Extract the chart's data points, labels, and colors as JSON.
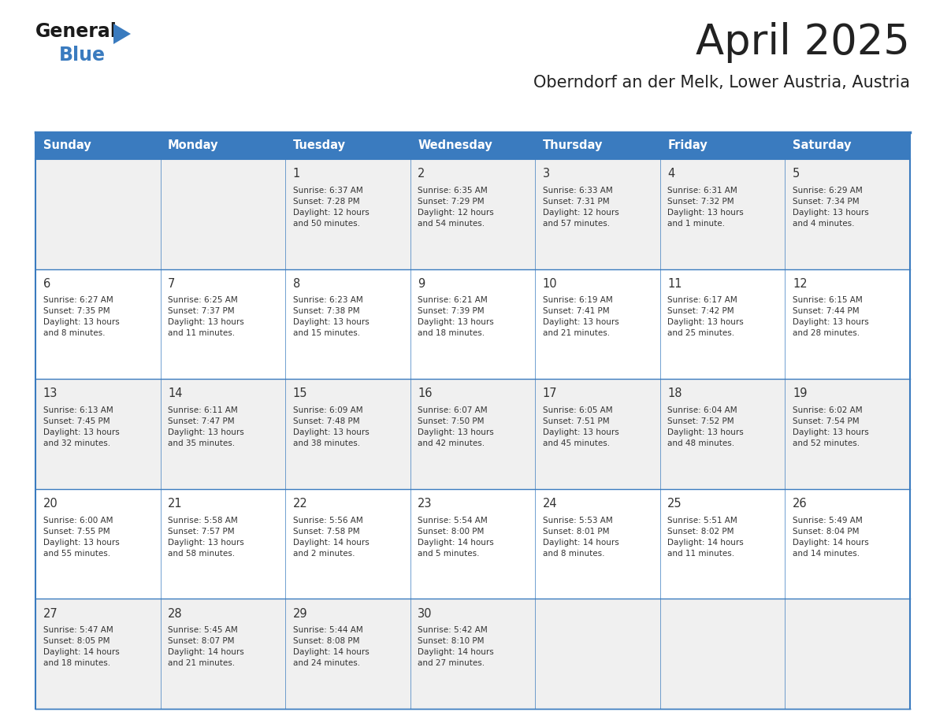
{
  "title": "April 2025",
  "subtitle": "Oberndorf an der Melk, Lower Austria, Austria",
  "days_of_week": [
    "Sunday",
    "Monday",
    "Tuesday",
    "Wednesday",
    "Thursday",
    "Friday",
    "Saturday"
  ],
  "header_bg": "#3a7bbf",
  "header_text": "#ffffff",
  "row_bg_even": "#f0f0f0",
  "row_bg_odd": "#ffffff",
  "cell_text_color": "#333333",
  "border_color": "#3a7bbf",
  "title_color": "#222222",
  "subtitle_color": "#222222",
  "logo_general_color": "#1a1a1a",
  "logo_blue_color": "#3a7bbf",
  "weeks": [
    [
      {
        "day": null,
        "info": null
      },
      {
        "day": null,
        "info": null
      },
      {
        "day": 1,
        "info": "Sunrise: 6:37 AM\nSunset: 7:28 PM\nDaylight: 12 hours\nand 50 minutes."
      },
      {
        "day": 2,
        "info": "Sunrise: 6:35 AM\nSunset: 7:29 PM\nDaylight: 12 hours\nand 54 minutes."
      },
      {
        "day": 3,
        "info": "Sunrise: 6:33 AM\nSunset: 7:31 PM\nDaylight: 12 hours\nand 57 minutes."
      },
      {
        "day": 4,
        "info": "Sunrise: 6:31 AM\nSunset: 7:32 PM\nDaylight: 13 hours\nand 1 minute."
      },
      {
        "day": 5,
        "info": "Sunrise: 6:29 AM\nSunset: 7:34 PM\nDaylight: 13 hours\nand 4 minutes."
      }
    ],
    [
      {
        "day": 6,
        "info": "Sunrise: 6:27 AM\nSunset: 7:35 PM\nDaylight: 13 hours\nand 8 minutes."
      },
      {
        "day": 7,
        "info": "Sunrise: 6:25 AM\nSunset: 7:37 PM\nDaylight: 13 hours\nand 11 minutes."
      },
      {
        "day": 8,
        "info": "Sunrise: 6:23 AM\nSunset: 7:38 PM\nDaylight: 13 hours\nand 15 minutes."
      },
      {
        "day": 9,
        "info": "Sunrise: 6:21 AM\nSunset: 7:39 PM\nDaylight: 13 hours\nand 18 minutes."
      },
      {
        "day": 10,
        "info": "Sunrise: 6:19 AM\nSunset: 7:41 PM\nDaylight: 13 hours\nand 21 minutes."
      },
      {
        "day": 11,
        "info": "Sunrise: 6:17 AM\nSunset: 7:42 PM\nDaylight: 13 hours\nand 25 minutes."
      },
      {
        "day": 12,
        "info": "Sunrise: 6:15 AM\nSunset: 7:44 PM\nDaylight: 13 hours\nand 28 minutes."
      }
    ],
    [
      {
        "day": 13,
        "info": "Sunrise: 6:13 AM\nSunset: 7:45 PM\nDaylight: 13 hours\nand 32 minutes."
      },
      {
        "day": 14,
        "info": "Sunrise: 6:11 AM\nSunset: 7:47 PM\nDaylight: 13 hours\nand 35 minutes."
      },
      {
        "day": 15,
        "info": "Sunrise: 6:09 AM\nSunset: 7:48 PM\nDaylight: 13 hours\nand 38 minutes."
      },
      {
        "day": 16,
        "info": "Sunrise: 6:07 AM\nSunset: 7:50 PM\nDaylight: 13 hours\nand 42 minutes."
      },
      {
        "day": 17,
        "info": "Sunrise: 6:05 AM\nSunset: 7:51 PM\nDaylight: 13 hours\nand 45 minutes."
      },
      {
        "day": 18,
        "info": "Sunrise: 6:04 AM\nSunset: 7:52 PM\nDaylight: 13 hours\nand 48 minutes."
      },
      {
        "day": 19,
        "info": "Sunrise: 6:02 AM\nSunset: 7:54 PM\nDaylight: 13 hours\nand 52 minutes."
      }
    ],
    [
      {
        "day": 20,
        "info": "Sunrise: 6:00 AM\nSunset: 7:55 PM\nDaylight: 13 hours\nand 55 minutes."
      },
      {
        "day": 21,
        "info": "Sunrise: 5:58 AM\nSunset: 7:57 PM\nDaylight: 13 hours\nand 58 minutes."
      },
      {
        "day": 22,
        "info": "Sunrise: 5:56 AM\nSunset: 7:58 PM\nDaylight: 14 hours\nand 2 minutes."
      },
      {
        "day": 23,
        "info": "Sunrise: 5:54 AM\nSunset: 8:00 PM\nDaylight: 14 hours\nand 5 minutes."
      },
      {
        "day": 24,
        "info": "Sunrise: 5:53 AM\nSunset: 8:01 PM\nDaylight: 14 hours\nand 8 minutes."
      },
      {
        "day": 25,
        "info": "Sunrise: 5:51 AM\nSunset: 8:02 PM\nDaylight: 14 hours\nand 11 minutes."
      },
      {
        "day": 26,
        "info": "Sunrise: 5:49 AM\nSunset: 8:04 PM\nDaylight: 14 hours\nand 14 minutes."
      }
    ],
    [
      {
        "day": 27,
        "info": "Sunrise: 5:47 AM\nSunset: 8:05 PM\nDaylight: 14 hours\nand 18 minutes."
      },
      {
        "day": 28,
        "info": "Sunrise: 5:45 AM\nSunset: 8:07 PM\nDaylight: 14 hours\nand 21 minutes."
      },
      {
        "day": 29,
        "info": "Sunrise: 5:44 AM\nSunset: 8:08 PM\nDaylight: 14 hours\nand 24 minutes."
      },
      {
        "day": 30,
        "info": "Sunrise: 5:42 AM\nSunset: 8:10 PM\nDaylight: 14 hours\nand 27 minutes."
      },
      {
        "day": null,
        "info": null
      },
      {
        "day": null,
        "info": null
      },
      {
        "day": null,
        "info": null
      }
    ]
  ]
}
